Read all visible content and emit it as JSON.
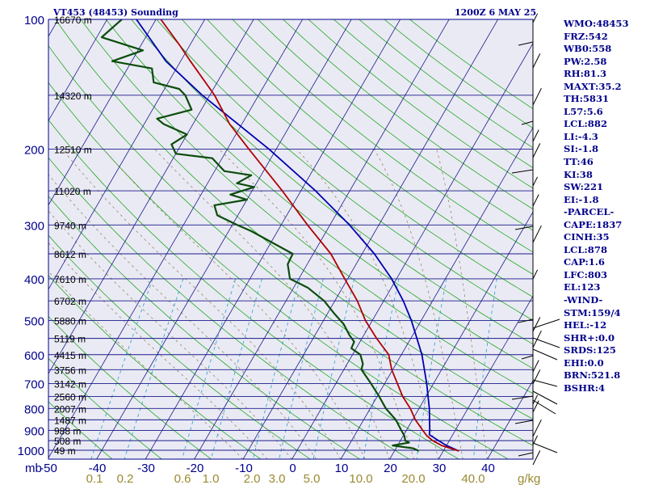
{
  "header": {
    "station": "VT453 (48453) Sounding",
    "time": "1200Z  6 MAY 25"
  },
  "indices": [
    "WMO:48453",
    "FRZ:542",
    "WB0:558",
    "PW:2.58",
    "RH:81.3",
    "MAXT:35.2",
    "TH:5831",
    "L57:5.6",
    "LCL:882",
    "LI:-4.3",
    "SI:-1.8",
    "TT:46",
    "KI:38",
    "SW:221",
    "EI:-1.8",
    "-PARCEL-",
    "CAPE:1837",
    "CINH:35",
    "LCL:878",
    "CAP:1.6",
    "LFC:803",
    "EL:123",
    "-WIND-",
    "STM:159/4",
    "HEL:-12",
    "SHR+:0.0",
    "SRDS:125",
    "EHI:0.0",
    "BRN:521.8",
    "BSHR:4"
  ],
  "chart_data": {
    "type": "line",
    "kind": "skew-T log-P sounding",
    "ylabel": "mb",
    "xlabel": "°C",
    "mixing_ratio_unit": "g/kg",
    "pressure_ticks": [
      100,
      200,
      300,
      400,
      500,
      600,
      700,
      800,
      900,
      1000
    ],
    "temperature_ticks": [
      -50,
      -40,
      -30,
      -20,
      -10,
      0,
      10,
      20,
      30,
      40
    ],
    "mixing_ratio_ticks": [
      "0.1",
      "0.2",
      "0.6",
      "1.0",
      "2.0",
      "3.0",
      "5.0",
      "10.0",
      "20.0",
      "40.0"
    ],
    "height_labels": [
      {
        "p": 100,
        "label": "16670 m"
      },
      {
        "p": 150,
        "label": "14320 m"
      },
      {
        "p": 200,
        "label": "12510 m"
      },
      {
        "p": 250,
        "label": "11020 m"
      },
      {
        "p": 300,
        "label": "9740 m"
      },
      {
        "p": 350,
        "label": "8612 m"
      },
      {
        "p": 400,
        "label": "7610 m"
      },
      {
        "p": 450,
        "label": "6702 m"
      },
      {
        "p": 500,
        "label": "5880 m"
      },
      {
        "p": 550,
        "label": "5119 m"
      },
      {
        "p": 600,
        "label": "4415 m"
      },
      {
        "p": 650,
        "label": "3756 m"
      },
      {
        "p": 700,
        "label": "3142 m"
      },
      {
        "p": 750,
        "label": "2560 m"
      },
      {
        "p": 800,
        "label": "2007 m"
      },
      {
        "p": 850,
        "label": "1487 m"
      },
      {
        "p": 900,
        "label": "988 m"
      },
      {
        "p": 950,
        "label": "508 m"
      },
      {
        "p": 1000,
        "label": "49 m"
      }
    ],
    "temperature": [
      {
        "p": 1004,
        "t": 33.2
      },
      {
        "p": 975,
        "t": 29.0
      },
      {
        "p": 950,
        "t": 26.6
      },
      {
        "p": 925,
        "t": 24.8
      },
      {
        "p": 900,
        "t": 23.4
      },
      {
        "p": 850,
        "t": 20.6
      },
      {
        "p": 800,
        "t": 18.2
      },
      {
        "p": 750,
        "t": 15.2
      },
      {
        "p": 700,
        "t": 12.6
      },
      {
        "p": 650,
        "t": 9.8
      },
      {
        "p": 600,
        "t": 7.4
      },
      {
        "p": 550,
        "t": 3.0
      },
      {
        "p": 500,
        "t": -1.4
      },
      {
        "p": 450,
        "t": -5.4
      },
      {
        "p": 400,
        "t": -10.6
      },
      {
        "p": 350,
        "t": -16.4
      },
      {
        "p": 300,
        "t": -24.6
      },
      {
        "p": 250,
        "t": -33.8
      },
      {
        "p": 200,
        "t": -45.6
      },
      {
        "p": 175,
        "t": -52.5
      },
      {
        "p": 150,
        "t": -59.0
      },
      {
        "p": 125,
        "t": -68.0
      },
      {
        "p": 115,
        "t": -72.0
      },
      {
        "p": 100,
        "t": -79.0
      }
    ],
    "dewpoint": [
      {
        "p": 1004,
        "t": 25.0
      },
      {
        "p": 990,
        "t": 23.6
      },
      {
        "p": 975,
        "t": 19.0
      },
      {
        "p": 960,
        "t": 22.0
      },
      {
        "p": 950,
        "t": 21.0
      },
      {
        "p": 925,
        "t": 20.2
      },
      {
        "p": 900,
        "t": 19.0
      },
      {
        "p": 850,
        "t": 16.6
      },
      {
        "p": 800,
        "t": 13.2
      },
      {
        "p": 750,
        "t": 10.4
      },
      {
        "p": 700,
        "t": 7.2
      },
      {
        "p": 650,
        "t": 3.6
      },
      {
        "p": 630,
        "t": 3.2
      },
      {
        "p": 600,
        "t": 1.6
      },
      {
        "p": 580,
        "t": -1.0
      },
      {
        "p": 560,
        "t": -1.2
      },
      {
        "p": 540,
        "t": -3.0
      },
      {
        "p": 510,
        "t": -5.4
      },
      {
        "p": 480,
        "t": -8.8
      },
      {
        "p": 450,
        "t": -12.2
      },
      {
        "p": 420,
        "t": -17.0
      },
      {
        "p": 400,
        "t": -21.8
      },
      {
        "p": 370,
        "t": -24.0
      },
      {
        "p": 350,
        "t": -24.2
      },
      {
        "p": 310,
        "t": -35.4
      },
      {
        "p": 300,
        "t": -39.0
      },
      {
        "p": 285,
        "t": -44.2
      },
      {
        "p": 270,
        "t": -46.0
      },
      {
        "p": 262,
        "t": -40.0
      },
      {
        "p": 255,
        "t": -44.0
      },
      {
        "p": 245,
        "t": -40.0
      },
      {
        "p": 240,
        "t": -44.0
      },
      {
        "p": 230,
        "t": -42.0
      },
      {
        "p": 225,
        "t": -48.0
      },
      {
        "p": 210,
        "t": -52.0
      },
      {
        "p": 205,
        "t": -60.0
      },
      {
        "p": 195,
        "t": -62.0
      },
      {
        "p": 185,
        "t": -60.0
      },
      {
        "p": 175,
        "t": -66.0
      },
      {
        "p": 170,
        "t": -68.0
      },
      {
        "p": 162,
        "t": -62.0
      },
      {
        "p": 150,
        "t": -65.0
      },
      {
        "p": 145,
        "t": -67.0
      },
      {
        "p": 140,
        "t": -73.0
      },
      {
        "p": 130,
        "t": -75.0
      },
      {
        "p": 125,
        "t": -84.0
      },
      {
        "p": 118,
        "t": -79.0
      },
      {
        "p": 110,
        "t": -89.0
      },
      {
        "p": 100,
        "t": -87.0
      }
    ],
    "parcel": [
      {
        "p": 1004,
        "t": 33.2
      },
      {
        "p": 975,
        "t": 30.0
      },
      {
        "p": 950,
        "t": 27.8
      },
      {
        "p": 920,
        "t": 25.2
      },
      {
        "p": 900,
        "t": 24.8
      },
      {
        "p": 850,
        "t": 23.5
      },
      {
        "p": 800,
        "t": 22.1
      },
      {
        "p": 700,
        "t": 18.6
      },
      {
        "p": 600,
        "t": 14.2
      },
      {
        "p": 500,
        "t": 8.0
      },
      {
        "p": 450,
        "t": 4.0
      },
      {
        "p": 400,
        "t": -1.0
      },
      {
        "p": 350,
        "t": -7.5
      },
      {
        "p": 300,
        "t": -16.0
      },
      {
        "p": 250,
        "t": -27.0
      },
      {
        "p": 200,
        "t": -41.5
      },
      {
        "p": 150,
        "t": -61.5
      },
      {
        "p": 125,
        "t": -73.0
      },
      {
        "p": 100,
        "t": -84.0
      }
    ]
  }
}
